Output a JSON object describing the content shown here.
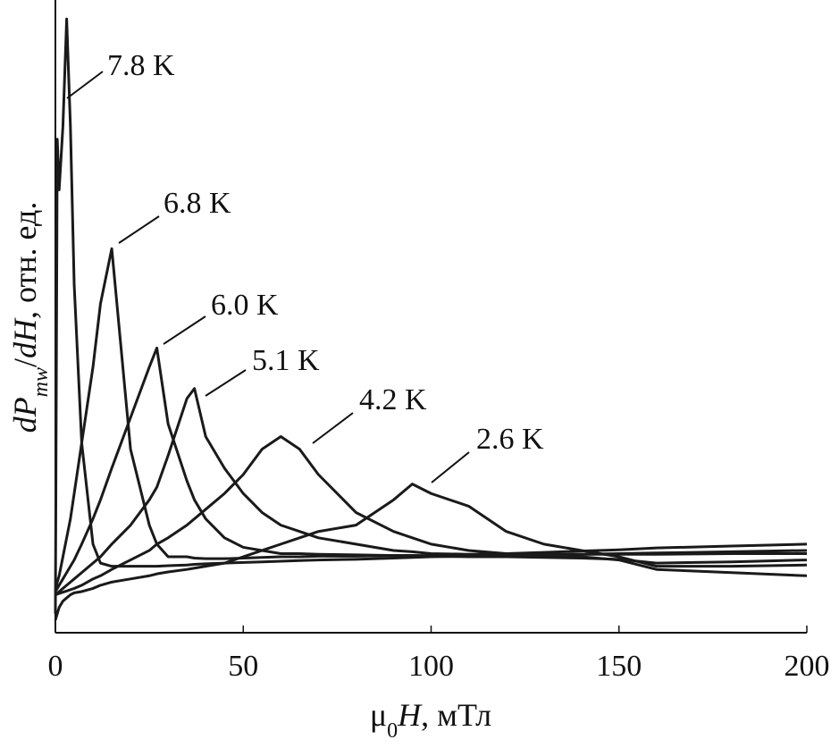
{
  "chart_data": {
    "type": "line",
    "x_label": [
      "μ",
      "0",
      "H",
      ", мТл"
    ],
    "y_label": [
      "d",
      "P",
      "mw",
      "/",
      "d",
      "H",
      ", отн. ед."
    ],
    "x": [
      0,
      0.5,
      1,
      2,
      3,
      4,
      5,
      7,
      10,
      12,
      15,
      20,
      25,
      27,
      30,
      35,
      37,
      40,
      45,
      50,
      55,
      60,
      65,
      70,
      80,
      90,
      95,
      100,
      110,
      120,
      130,
      140,
      150,
      160,
      180,
      200
    ],
    "xlim": [
      0,
      200
    ],
    "xticks": [
      0,
      50,
      100,
      150,
      200
    ],
    "ylim": [
      0,
      100
    ],
    "series": [
      {
        "name": "7.8 K",
        "color": "#1a1a1a",
        "values": [
          3,
          78,
          70,
          80,
          97,
          80,
          55,
          30,
          14,
          11,
          10.5,
          10.5,
          10.5,
          10.5,
          10.6,
          10.7,
          10.8,
          10.9,
          11,
          11.1,
          11.2,
          11.3,
          11.4,
          11.5,
          11.6,
          11.8,
          11.9,
          12,
          12.1,
          12.2,
          12.3,
          12.4,
          12.5,
          12.6,
          12.8,
          13
        ]
      },
      {
        "name": "6.8 K",
        "color": "#1a1a1a",
        "values": [
          6.8,
          8,
          9,
          12,
          15,
          18,
          22,
          30,
          42,
          52,
          60.7,
          29,
          17,
          14,
          12,
          12,
          11.8,
          11.7,
          11.7,
          11.8,
          11.9,
          12,
          12,
          12.1,
          12.1,
          12.2,
          12.2,
          12.2,
          12.3,
          12.3,
          12.4,
          12.4,
          12.4,
          12.4,
          12.5,
          12.5
        ]
      },
      {
        "name": "6.0 K",
        "color": "#1a1a1a",
        "values": [
          6.5,
          7,
          7.5,
          8.5,
          9.5,
          10.5,
          11.5,
          14,
          18,
          21,
          26,
          34,
          42,
          45,
          33,
          24,
          21,
          18,
          15,
          13.5,
          13,
          12.5,
          12.5,
          12.4,
          12.3,
          12.2,
          12.2,
          12.1,
          12,
          12,
          11.9,
          11.8,
          11.6,
          11,
          11.2,
          11.5
        ]
      },
      {
        "name": "5.1 K",
        "color": "#1a1a1a",
        "values": [
          6,
          6.2,
          6.5,
          7,
          7.5,
          8,
          8.5,
          9.5,
          11,
          12,
          14,
          17,
          21,
          23,
          28,
          37,
          38.6,
          31,
          26,
          22,
          19,
          17,
          16,
          15,
          14,
          13,
          12.8,
          12.5,
          12.4,
          12.5,
          12.7,
          12.9,
          13.1,
          13.4,
          13.7,
          14
        ]
      },
      {
        "name": "4.2 K",
        "color": "#1a1a1a",
        "values": [
          6,
          6.1,
          6.2,
          6.4,
          6.6,
          6.8,
          7,
          7.5,
          8.5,
          9,
          10,
          11.5,
          13,
          14,
          15,
          17,
          18,
          19.5,
          22,
          25,
          29,
          31,
          29,
          25,
          19,
          16,
          15,
          14,
          13,
          12.5,
          12,
          12,
          11.5,
          10,
          9.5,
          9
        ]
      },
      {
        "name": "2.6 K",
        "color": "#1a1a1a",
        "values": [
          2,
          3,
          4,
          5,
          5.5,
          6,
          6.3,
          6.5,
          7,
          7.5,
          8,
          8.5,
          9,
          9.3,
          9.6,
          10,
          10.2,
          10.5,
          11,
          12,
          13,
          14,
          15,
          16,
          17,
          21,
          23.5,
          22,
          20,
          16,
          14,
          13,
          12,
          10.5,
          10.5,
          10.7
        ]
      }
    ]
  }
}
